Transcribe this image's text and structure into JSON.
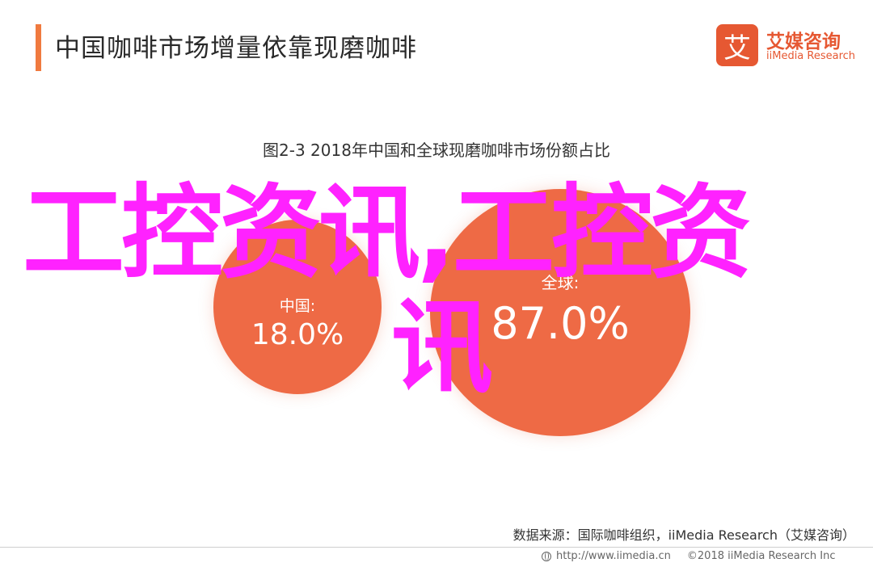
{
  "slide": {
    "title": "中国咖啡市场增量依靠现磨咖啡"
  },
  "logo": {
    "mark": "艾",
    "name_cn": "艾媒咨询",
    "name_en": "iiMedia Research"
  },
  "chart_data": {
    "type": "bubble",
    "title": "图2-3 2018年中国和全球现磨咖啡市场份额占比",
    "series": [
      {
        "label": "中国:",
        "value_text": "18.0%",
        "value": 18.0
      },
      {
        "label": "全球:",
        "value_text": "87.0%",
        "value": 87.0
      }
    ]
  },
  "overlay": {
    "line1": "工控资讯,工控资",
    "line2": "讯"
  },
  "source": "数据来源：国际咖啡组织，iiMedia Research（艾媒咨询）",
  "footer": {
    "url": "http://www.iimedia.cn",
    "copyright": "©2018  iiMedia Research  Inc"
  },
  "colors": {
    "accent": "#f07a3f",
    "bubble": "#ee6a45",
    "overlay": "#ff22ff",
    "brand": "#e65832"
  }
}
